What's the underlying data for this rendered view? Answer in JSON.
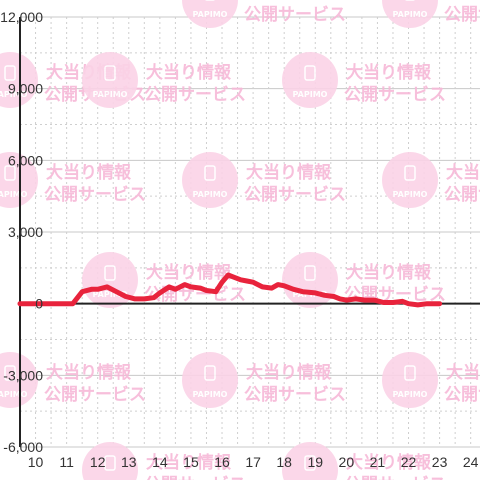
{
  "watermark": {
    "logo_text": "PAPIMO",
    "line1": "大当り情報",
    "line2": "公開サービス"
  },
  "chart_data": {
    "type": "line",
    "title": "",
    "xlabel": "",
    "ylabel": "",
    "xlim": [
      9.5,
      24.3
    ],
    "ylim": [
      -6000,
      12000
    ],
    "x_ticks": [
      10,
      11,
      12,
      13,
      14,
      15,
      16,
      17,
      18,
      19,
      20,
      21,
      22,
      23,
      24
    ],
    "x_tick_labels": [
      "10",
      "11",
      "12",
      "13",
      "14",
      "15",
      "16",
      "17",
      "18",
      "19",
      "20",
      "21",
      "22",
      "23",
      "24"
    ],
    "y_ticks": [
      12000,
      9000,
      6000,
      3000,
      0,
      -3000,
      -6000
    ],
    "y_tick_labels": [
      "12,000",
      "9,000",
      "6,000",
      "3,000",
      "0",
      "-3,000",
      "-6,000"
    ],
    "grid": true,
    "legend": "none",
    "series_color": "#e8233c",
    "series": [
      {
        "x": [
          9.5,
          11.2,
          11.5,
          11.8,
          12.0,
          12.3,
          12.6,
          12.9,
          13.2,
          13.5,
          13.8,
          14.0,
          14.3,
          14.5,
          14.8,
          15.0,
          15.3,
          15.5,
          15.8,
          16.0,
          16.2,
          16.4,
          16.6,
          16.8,
          17.0,
          17.3,
          17.6,
          17.8,
          18.0,
          18.3,
          18.6,
          19.0,
          19.3,
          19.6,
          19.8,
          20.0,
          20.3,
          20.6,
          20.9,
          21.2,
          21.5,
          21.8,
          22.0,
          22.3,
          22.6,
          22.9,
          23.0
        ],
        "y": [
          0,
          0,
          500,
          600,
          600,
          700,
          500,
          300,
          200,
          200,
          250,
          450,
          700,
          600,
          800,
          700,
          650,
          550,
          500,
          900,
          1200,
          1100,
          1000,
          950,
          900,
          700,
          650,
          800,
          750,
          600,
          500,
          450,
          350,
          300,
          200,
          150,
          200,
          150,
          150,
          50,
          50,
          100,
          0,
          -50,
          0,
          0,
          0
        ]
      }
    ]
  }
}
